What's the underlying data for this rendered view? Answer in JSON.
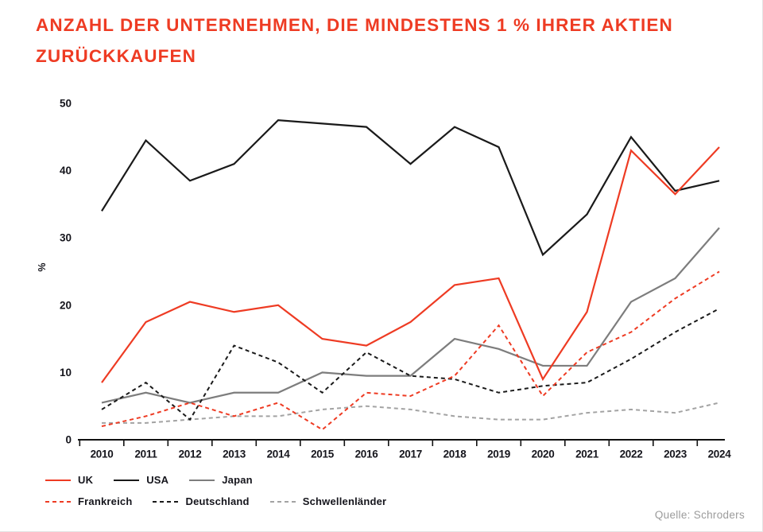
{
  "title": {
    "line1": "ANZAHL DER UNTERNEHMEN, DIE MINDESTENS 1 % IHRER AKTIEN",
    "line2": "ZURÜCKKAUFEN",
    "color": "#ee3b23"
  },
  "source": "Quelle: Schroders",
  "colors": {
    "brand_red": "#ee3b23",
    "black": "#1a1a1a",
    "gray": "#7d7d7d",
    "light_gray": "#a3a3a3",
    "axis_text": "#15151c",
    "source_text": "#9b9b9b"
  },
  "chart_data": {
    "type": "line",
    "title": "Anzahl der Unternehmen, die mindestens 1 % ihrer Aktien zurückkaufen",
    "xlabel": "",
    "ylabel": "%",
    "ylim": [
      0,
      50
    ],
    "yticks": [
      0,
      10,
      20,
      30,
      40,
      50
    ],
    "grid": false,
    "legend_position": "bottom-left",
    "categories": [
      "2010",
      "2011",
      "2012",
      "2013",
      "2014",
      "2015",
      "2016",
      "2017",
      "2018",
      "2019",
      "2020",
      "2021",
      "2022",
      "2023",
      "2024"
    ],
    "series": [
      {
        "name": "UK",
        "color": "#ee3b23",
        "dashed": false,
        "values": [
          8.5,
          17.5,
          20.5,
          19,
          20,
          15,
          14,
          17.5,
          23,
          24,
          9,
          19,
          43,
          36.5,
          43.5
        ]
      },
      {
        "name": "USA",
        "color": "#1a1a1a",
        "dashed": false,
        "values": [
          34,
          44.5,
          38.5,
          41,
          47.5,
          47,
          46.5,
          41,
          46.5,
          43.5,
          27.5,
          33.5,
          45,
          37,
          38.5
        ]
      },
      {
        "name": "Japan",
        "color": "#7d7d7d",
        "dashed": false,
        "values": [
          5.5,
          7,
          5.5,
          7,
          7,
          10,
          9.5,
          9.5,
          15,
          13.5,
          11,
          11,
          20.5,
          24,
          31.5
        ]
      },
      {
        "name": "Frankreich",
        "color": "#ee3b23",
        "dashed": true,
        "values": [
          2,
          3.5,
          5.5,
          3.5,
          5.5,
          1.5,
          7,
          6.5,
          9.5,
          17,
          6.5,
          13,
          16,
          21,
          25
        ]
      },
      {
        "name": "Deutschland",
        "color": "#1a1a1a",
        "dashed": true,
        "values": [
          4.5,
          8.5,
          3,
          14,
          11.5,
          7,
          13,
          9.5,
          9,
          7,
          8,
          8.5,
          12,
          16,
          19.5
        ]
      },
      {
        "name": "Schwellenländer",
        "color": "#a3a3a3",
        "dashed": true,
        "values": [
          2.5,
          2.5,
          3,
          3.5,
          3.5,
          4.5,
          5,
          4.5,
          3.5,
          3,
          3,
          4,
          4.5,
          4,
          5.5
        ]
      }
    ]
  }
}
